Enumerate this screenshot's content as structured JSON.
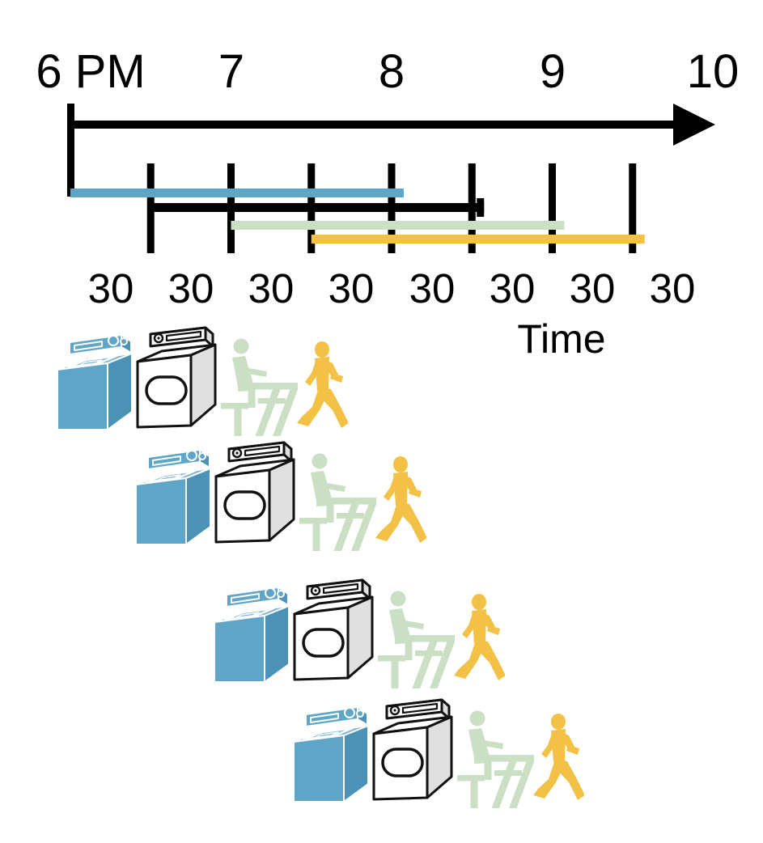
{
  "timeline": {
    "axis_label": "Time",
    "axis_color": "#000000",
    "hour_labels": [
      {
        "label": "6 PM",
        "hour": 18
      },
      {
        "label": "7",
        "hour": 19
      },
      {
        "label": "8",
        "hour": 20
      },
      {
        "label": "9",
        "hour": 21
      },
      {
        "label": "10",
        "hour": 22
      }
    ],
    "interval_minutes": 30,
    "interval_labels": [
      "30",
      "30",
      "30",
      "30",
      "30",
      "30",
      "30",
      "30"
    ],
    "tick_half_hours": [
      18.5,
      19,
      19.5,
      20,
      20.5,
      21,
      21.5
    ]
  },
  "stage_bars": [
    {
      "stage": "washer",
      "icon": "washing-machine-icon",
      "color": "#5FA5C7",
      "start_label": "6:00 PM",
      "end_label": "8:00 PM",
      "start_hour": 18.0,
      "end_hour": 20.0
    },
    {
      "stage": "dryer",
      "icon": "dryer-icon",
      "color": "#000000",
      "start_label": "6:30 PM",
      "end_label": "8:30 PM",
      "start_hour": 18.5,
      "end_hour": 20.5
    },
    {
      "stage": "folder",
      "icon": "person-folding-at-table-icon",
      "color": "#CBDFC5",
      "start_label": "7:00 PM",
      "end_label": "9:00 PM",
      "start_hour": 19.0,
      "end_hour": 21.0
    },
    {
      "stage": "storer",
      "icon": "person-walking-icon",
      "color": "#F3C145",
      "start_label": "7:30 PM",
      "end_label": "9:30 PM",
      "start_hour": 19.5,
      "end_hour": 21.5
    }
  ],
  "loads": [
    {
      "load": 1,
      "stages": [
        "washer",
        "dryer",
        "folder",
        "storer"
      ]
    },
    {
      "load": 2,
      "stages": [
        "washer",
        "dryer",
        "folder",
        "storer"
      ]
    },
    {
      "load": 3,
      "stages": [
        "washer",
        "dryer",
        "folder",
        "storer"
      ]
    },
    {
      "load": 4,
      "stages": [
        "washer",
        "dryer",
        "folder",
        "storer"
      ]
    }
  ],
  "icon_colors": {
    "washer_front": "#5FA5C7",
    "washer_top": "#7FB7D4",
    "washer_side": "#4B92B6",
    "dryer_body": "#FFFFFF",
    "dryer_side": "#E0E0E0",
    "dryer_outline": "#111111",
    "folder": "#CBDFC5",
    "storer": "#F3C145"
  },
  "chart_data": {
    "type": "gantt",
    "xlabel": "Time",
    "x_ticks": [
      "6 PM",
      "7",
      "8",
      "9",
      "10"
    ],
    "x_minor_interval_label": "30",
    "x_minor_interval_minutes": 30,
    "bars": [
      {
        "name": "washer",
        "start": "18:00",
        "end": "20:00",
        "color": "#5FA5C7"
      },
      {
        "name": "dryer",
        "start": "18:30",
        "end": "20:30",
        "color": "#000000"
      },
      {
        "name": "folder",
        "start": "19:00",
        "end": "21:00",
        "color": "#CBDFC5"
      },
      {
        "name": "put-away",
        "start": "19:30",
        "end": "21:30",
        "color": "#F3C145"
      }
    ]
  }
}
